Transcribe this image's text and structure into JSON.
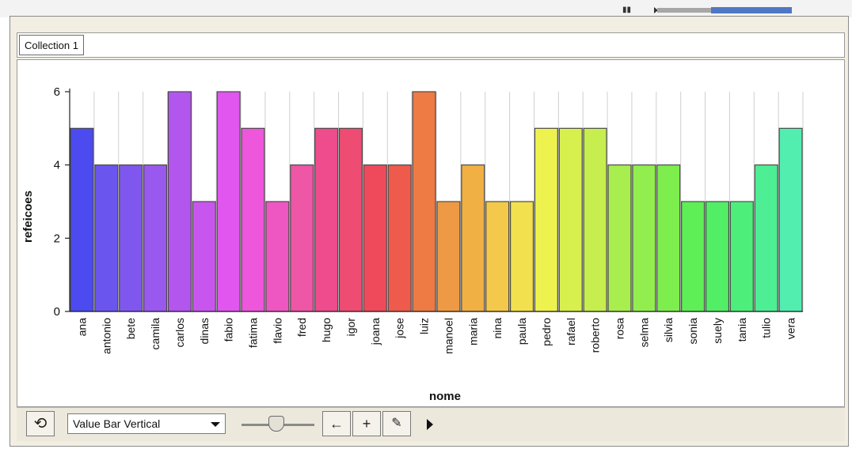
{
  "window": {
    "tab_label": "Collection 1"
  },
  "toolbar": {
    "plot_type": "Value Bar Vertical",
    "sync_icon": "sync-arrows-icon",
    "arrow_label": "←",
    "plus_label": "+",
    "pencil_label": "✎"
  },
  "chart_data": {
    "type": "bar",
    "xlabel": "nome",
    "ylabel": "refeicoes",
    "ylim": [
      0,
      6
    ],
    "yticks": [
      0,
      2,
      4,
      6
    ],
    "grid": "vertical",
    "categories": [
      "ana",
      "antonio",
      "bete",
      "camila",
      "carlos",
      "dinas",
      "fabio",
      "fatima",
      "flavio",
      "fred",
      "hugo",
      "igor",
      "joana",
      "jose",
      "luiz",
      "manoel",
      "maria",
      "nina",
      "paula",
      "pedro",
      "rafael",
      "roberto",
      "rosa",
      "selma",
      "silvia",
      "sonia",
      "suely",
      "tania",
      "tulio",
      "vera"
    ],
    "values": [
      5,
      4,
      4,
      4,
      6,
      3,
      6,
      5,
      3,
      4,
      5,
      5,
      4,
      4,
      6,
      3,
      4,
      3,
      3,
      5,
      5,
      5,
      4,
      4,
      4,
      3,
      3,
      3,
      4,
      5
    ],
    "colors": [
      "#4b4bf0",
      "#6a55ee",
      "#7f57ee",
      "#9a59ee",
      "#b256ee",
      "#c856ee",
      "#e056ee",
      "#ee56dc",
      "#ee56c2",
      "#ee56a6",
      "#ee4c8c",
      "#ee4c72",
      "#ee4a5c",
      "#ee5a4c",
      "#ee7a44",
      "#ee9a44",
      "#f0b044",
      "#f4c84a",
      "#f2e04e",
      "#eef24e",
      "#d8f04e",
      "#c6ee4e",
      "#a8ee4e",
      "#92ee4e",
      "#7eee4e",
      "#5eee56",
      "#52ee66",
      "#4eee7a",
      "#4eee94",
      "#52eeb0"
    ]
  }
}
